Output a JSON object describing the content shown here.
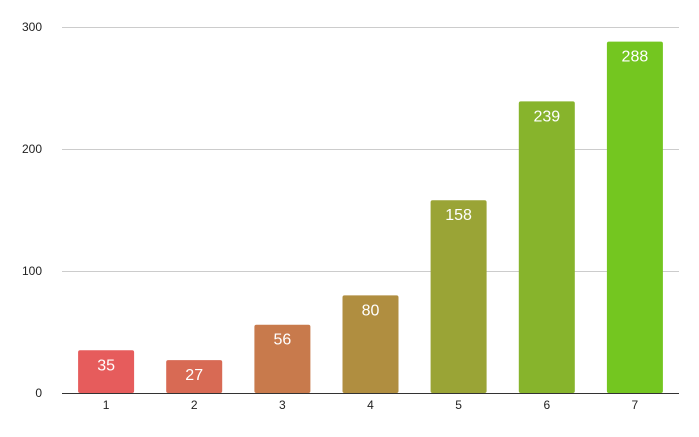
{
  "chart_data": {
    "type": "bar",
    "title": "",
    "xlabel": "",
    "ylabel": "",
    "categories": [
      "1",
      "2",
      "3",
      "4",
      "5",
      "6",
      "7"
    ],
    "values": [
      35,
      27,
      56,
      80,
      158,
      239,
      288
    ],
    "data_labels": [
      "35",
      "27",
      "56",
      "80",
      "158",
      "239",
      "288"
    ],
    "ylim": [
      0,
      300
    ],
    "yticks": [
      0,
      100,
      200,
      300
    ],
    "ytick_labels": [
      "0",
      "100",
      "200",
      "300"
    ],
    "grid": true,
    "legend": "none",
    "bar_colors": [
      "#e65c5c",
      "#d86a54",
      "#c87a4c",
      "#b08e40",
      "#9aa436",
      "#87b42c",
      "#74c620"
    ],
    "gridline_color": "#cccccc",
    "label_color": "#ffffff"
  }
}
